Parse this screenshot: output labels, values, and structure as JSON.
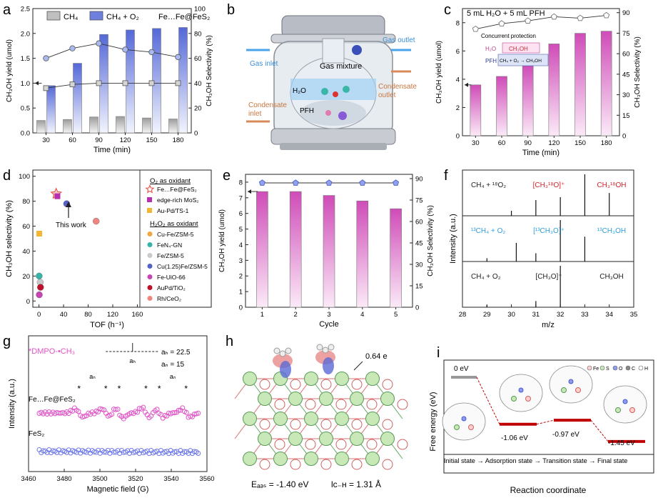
{
  "figure": {
    "colors": {
      "gray_bar": "#bfbfbf",
      "blue_bar": "#6f7fe0",
      "pink_bar": "#d65cc0",
      "blue_line": "#8aa3ee",
      "gray_line": "#9a9a9a",
      "red_text": "#d8232a",
      "blue_text": "#2f9ed8",
      "epr_pink": "#e052c8",
      "epr_blue": "#6e78ea",
      "red_level": "#c00000"
    }
  },
  "panels": {
    "a": {
      "label": "a",
      "legend": [
        "CH₄",
        "CH₄ + O₂"
      ],
      "annotation": "Fe…Fe@FeS₂"
    },
    "b": {
      "label": "b",
      "texts": {
        "gas_inlet": "Gas inlet",
        "gas_outlet": "Gas outlet",
        "gas_mixture": "Gas mixture",
        "condensate_inlet_1": "Condensate",
        "condensate_inlet_2": "inlet",
        "condensate_outlet_1": "Condensate",
        "condensate_outlet_2": "outlet",
        "h2o": "H₂O",
        "pfh": "PFH"
      }
    },
    "c": {
      "label": "c",
      "header": "5 mL H₂O + 5 mL PFH",
      "inset_title": "Concurrent protection",
      "inset_h2o": "H₂O",
      "inset_pfh": "PFH",
      "inset_ch3oh": "CH₃OH",
      "inset_reaction": "CH₄ + O₂ → CH₃OH"
    },
    "d": {
      "label": "d",
      "o2_header": "O₂ as oxidant",
      "h2o2_header": "H₂O₂ as oxidant",
      "this_work": "This work",
      "legend": [
        {
          "label": "Fe…Fe@FeS₂",
          "color": "#e8473c",
          "shape": "star"
        },
        {
          "label": "edge-rich MoS₂",
          "color": "#b72fb0",
          "shape": "square"
        },
        {
          "label": "Au-Pd/TS-1",
          "color": "#f2b632",
          "shape": "square"
        },
        {
          "label": "Cu-Fe/ZSM-5",
          "color": "#f3a640",
          "shape": "circle"
        },
        {
          "label": "FeN₄-GN",
          "color": "#35b5a8",
          "shape": "circle"
        },
        {
          "label": "Fe/ZSM-5",
          "color": "#c9c9c9",
          "shape": "circle"
        },
        {
          "label": "Cu(1.25)Fe/ZSM-5",
          "color": "#5560c9",
          "shape": "circle"
        },
        {
          "label": "Fe-UiO-66",
          "color": "#c844b4",
          "shape": "circle"
        },
        {
          "label": "AuPd/TiO₂",
          "color": "#c00f2a",
          "shape": "circle"
        },
        {
          "label": "Rh/CeO₂",
          "color": "#f0857d",
          "shape": "circle"
        }
      ]
    },
    "e": {
      "label": "e"
    },
    "f": {
      "label": "f",
      "rows": [
        {
          "labels": [
            "CH₄ + ¹⁸O₂",
            "[CH₃¹⁸O]⁺",
            "CH₃¹⁸OH"
          ],
          "color": "#d8232a"
        },
        {
          "labels": [
            "¹³CH₄ + O₂",
            "[¹³CH₃O]⁺",
            "¹³CH₃OH"
          ],
          "color": "#2f9ed8"
        },
        {
          "labels": [
            "CH₄ + O₂",
            "[CH₃O]⁺",
            "CH₃OH"
          ],
          "color": "#222222"
        }
      ]
    },
    "g": {
      "label": "g",
      "title": "*DMPO-•CH₃",
      "aH": "aₕ = 22.5",
      "aN": "aₙ = 15",
      "aH_mark": "aₕ",
      "aN_mark": "aₙ",
      "series": [
        "Fe…Fe@FeS₂",
        "FeS₂"
      ]
    },
    "h": {
      "label": "h",
      "charge": "0.64 e",
      "eads": "Eₐₔₛ = -1.40 eV",
      "lch": "lᴄ₋ʜ = 1.31 Å"
    },
    "i": {
      "label": "i",
      "ylabel": "Free energy (eV)",
      "xlabel": "Reaction coordinate",
      "levels": [
        "0 eV",
        "-1.06 eV",
        "-0.97 eV",
        "-1.45 eV"
      ],
      "states": "Initial state → Adsorption state → Transition state → Final state",
      "legend_items": [
        "Fe",
        "S",
        "O",
        "C",
        "H"
      ]
    }
  },
  "chart_data": [
    {
      "panel": "a",
      "type": "bar",
      "xlabel": "Time (min)",
      "ylabel": "CH₃OH yield (umol)",
      "y2label": "CH₃OH Selectivity (%)",
      "categories": [
        30,
        60,
        90,
        120,
        150,
        180
      ],
      "series": [
        {
          "name": "CH₄",
          "type": "bar",
          "values": [
            0.25,
            0.27,
            0.32,
            0.33,
            0.3,
            0.28
          ]
        },
        {
          "name": "CH₄ + O₂",
          "type": "bar",
          "values": [
            0.95,
            1.4,
            1.98,
            2.07,
            2.1,
            2.12
          ]
        },
        {
          "name": "Selectivity CH₄ + O₂",
          "type": "line",
          "axis": "right",
          "values": [
            60,
            68,
            72,
            67,
            65,
            61
          ]
        },
        {
          "name": "Selectivity CH₄",
          "type": "line",
          "axis": "right",
          "values": [
            36,
            39,
            40,
            40,
            40,
            40
          ]
        }
      ],
      "ylim": [
        0,
        2.5
      ],
      "y2lim": [
        0,
        100
      ],
      "yticks": [
        0.0,
        0.5,
        1.0,
        1.5,
        2.0,
        2.5
      ],
      "y2ticks": [
        0,
        20,
        40,
        60,
        80,
        100
      ]
    },
    {
      "panel": "c",
      "type": "bar",
      "xlabel": "Time (min)",
      "ylabel": "CH₃OH yield (umol)",
      "y2label": "CH₃OH Selectivity (%)",
      "categories": [
        30,
        60,
        90,
        120,
        150,
        180
      ],
      "series": [
        {
          "name": "Yield",
          "type": "bar",
          "values": [
            3.6,
            4.2,
            4.95,
            6.5,
            7.25,
            7.4
          ]
        },
        {
          "name": "Selectivity",
          "type": "line",
          "axis": "right",
          "values": [
            78,
            82,
            84,
            87,
            86,
            88
          ]
        }
      ],
      "ylim": [
        0,
        9
      ],
      "y2lim": [
        0,
        93
      ],
      "yticks": [
        0,
        2,
        4,
        6,
        8
      ],
      "y2ticks": [
        0,
        15,
        30,
        45,
        60,
        75,
        90
      ]
    },
    {
      "panel": "d",
      "type": "scatter",
      "xlabel": "TOF (h⁻¹)",
      "ylabel": "CH₃OH selectivity (%)",
      "xlim": [
        -10,
        165
      ],
      "ylim": [
        -5,
        105
      ],
      "xticks": [
        0,
        40,
        80,
        120,
        160
      ],
      "yticks": [
        0,
        20,
        40,
        60,
        80,
        100
      ],
      "points": [
        {
          "label": "Fe…Fe@FeS₂",
          "x": 28,
          "y": 86
        },
        {
          "label": "edge-rich MoS₂",
          "x": 30,
          "y": 84
        },
        {
          "label": "Au-Pd/TS-1",
          "x": 0.5,
          "y": 54
        },
        {
          "label": "Cu(1.25)Fe/ZSM-5",
          "x": 45,
          "y": 78
        },
        {
          "label": "Rh/CeO₂",
          "x": 93,
          "y": 64
        },
        {
          "label": "FeN₄-GN",
          "x": 0.3,
          "y": 20
        },
        {
          "label": "Fe/ZSM-5",
          "x": 2,
          "y": 15
        },
        {
          "label": "AuPd/TiO₂",
          "x": 2.5,
          "y": 11
        },
        {
          "label": "Fe-UiO-66",
          "x": 0.5,
          "y": 5
        }
      ]
    },
    {
      "panel": "e",
      "type": "bar",
      "xlabel": "Cycle",
      "ylabel": "CH₃OH yield (umol)",
      "y2label": "CH₃OH Selectivity (%)",
      "categories": [
        1,
        2,
        3,
        4,
        5
      ],
      "series": [
        {
          "name": "Yield",
          "type": "bar",
          "values": [
            7.4,
            7.4,
            7.15,
            6.8,
            6.3
          ]
        },
        {
          "name": "Selectivity",
          "type": "line",
          "axis": "right",
          "values": [
            87,
            87,
            87,
            87,
            87
          ]
        }
      ],
      "ylim": [
        0,
        8.5
      ],
      "y2lim": [
        0,
        93
      ],
      "yticks": [
        0,
        1,
        2,
        3,
        4,
        5,
        6,
        7,
        8
      ],
      "y2ticks": [
        0,
        15,
        30,
        45,
        60,
        75,
        90
      ]
    },
    {
      "panel": "f",
      "type": "bar",
      "xlabel": "m/z",
      "ylabel": "Intensity (a.u.)",
      "xlim": [
        28,
        35
      ],
      "xticks": [
        28,
        29,
        30,
        31,
        32,
        33,
        34,
        35
      ],
      "series": [
        {
          "name": "CH₄ + ¹⁸O₂",
          "peaks": [
            {
              "mz": 30,
              "h": 0.12
            },
            {
              "mz": 31,
              "h": 0.38
            },
            {
              "mz": 32,
              "h": 0.45
            },
            {
              "mz": 33,
              "h": 1.0
            },
            {
              "mz": 34,
              "h": 0.55
            }
          ]
        },
        {
          "name": "¹³CH₄ + O₂",
          "peaks": [
            {
              "mz": 29,
              "h": 0.08
            },
            {
              "mz": 30.2,
              "h": 0.45
            },
            {
              "mz": 31,
              "h": 0.2
            },
            {
              "mz": 32,
              "h": 1.0
            },
            {
              "mz": 33,
              "h": 0.6
            }
          ]
        },
        {
          "name": "CH₄ + O₂",
          "peaks": [
            {
              "mz": 29,
              "h": 0.05
            },
            {
              "mz": 31,
              "h": 0.15
            },
            {
              "mz": 32,
              "h": 1.0
            }
          ]
        }
      ]
    },
    {
      "panel": "g",
      "type": "line",
      "xlabel": "Magnetic field (G)",
      "ylabel": "Intensity (a.u.)",
      "xlim": [
        3460,
        3560
      ],
      "xticks": [
        3460,
        3480,
        3500,
        3520,
        3540,
        3560
      ],
      "line_centers": [
        3488.3,
        3503.3,
        3510.8,
        3525.8,
        3533.3,
        3548.3
      ]
    },
    {
      "panel": "i",
      "type": "line",
      "xlabel": "Reaction coordinate",
      "ylabel": "Free energy (eV)",
      "categories": [
        "Initial state",
        "Adsorption state",
        "Transition state",
        "Final state"
      ],
      "values": [
        0,
        -1.06,
        -0.97,
        -1.45
      ]
    }
  ]
}
